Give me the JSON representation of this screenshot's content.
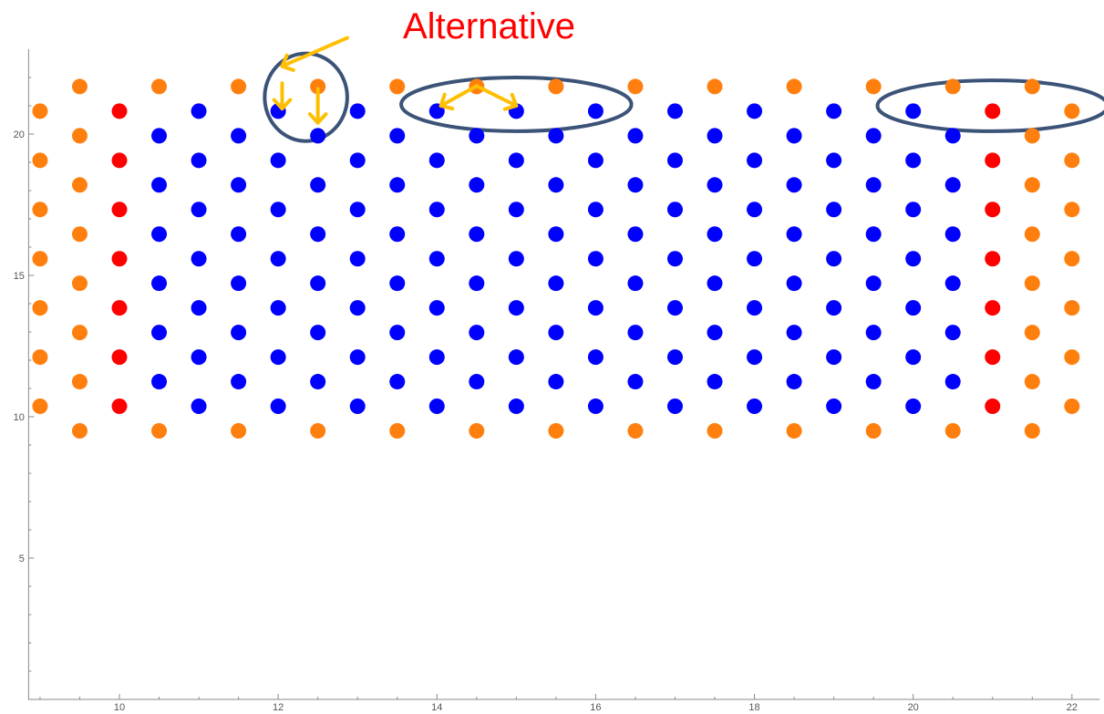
{
  "chart_data": {
    "type": "scatter",
    "annotation": "Alternative",
    "xlim": [
      8.85,
      22.35
    ],
    "ylim": [
      0,
      23
    ],
    "x_ticks": [
      10,
      12,
      14,
      16,
      18,
      20,
      22
    ],
    "y_ticks": [
      5,
      10,
      15,
      20
    ],
    "grid": false,
    "colors": {
      "orange": "#ff7f0e",
      "red": "#ff0000",
      "blue": "#0000ff",
      "ellipse": "#3c5378",
      "arrow": "#ffbf00"
    },
    "row_y": [
      9.5,
      10.37,
      11.24,
      12.11,
      12.98,
      13.85,
      14.72,
      15.59,
      16.46,
      17.33,
      18.2,
      19.07,
      19.94,
      20.81,
      21.68
    ],
    "series": [
      {
        "color": "orange",
        "points": [
          [
            9.5,
            9.5
          ],
          [
            10.5,
            9.5
          ],
          [
            11.5,
            9.5
          ],
          [
            12.5,
            9.5
          ],
          [
            13.5,
            9.5
          ],
          [
            14.5,
            9.5
          ],
          [
            15.5,
            9.5
          ],
          [
            16.5,
            9.5
          ],
          [
            17.5,
            9.5
          ],
          [
            18.5,
            9.5
          ],
          [
            19.5,
            9.5
          ],
          [
            20.5,
            9.5
          ],
          [
            21.5,
            9.5
          ],
          [
            9.0,
            10.37
          ],
          [
            9.5,
            11.24
          ],
          [
            9.0,
            12.11
          ],
          [
            9.5,
            12.98
          ],
          [
            9.0,
            13.85
          ],
          [
            9.5,
            14.72
          ],
          [
            9.0,
            15.59
          ],
          [
            9.5,
            16.46
          ],
          [
            9.0,
            17.33
          ],
          [
            9.5,
            18.2
          ],
          [
            9.0,
            19.07
          ],
          [
            9.5,
            19.94
          ],
          [
            9.0,
            20.81
          ],
          [
            22.0,
            10.37
          ],
          [
            21.5,
            11.24
          ],
          [
            22.0,
            12.11
          ],
          [
            21.5,
            12.98
          ],
          [
            22.0,
            13.85
          ],
          [
            21.5,
            14.72
          ],
          [
            22.0,
            15.59
          ],
          [
            21.5,
            16.46
          ],
          [
            22.0,
            17.33
          ],
          [
            21.5,
            18.2
          ],
          [
            22.0,
            19.07
          ],
          [
            21.5,
            19.94
          ],
          [
            22.0,
            20.81
          ],
          [
            9.5,
            21.68
          ],
          [
            10.5,
            21.68
          ],
          [
            11.5,
            21.68
          ],
          [
            12.5,
            21.68
          ],
          [
            13.5,
            21.68
          ],
          [
            14.5,
            21.68
          ],
          [
            15.5,
            21.68
          ],
          [
            16.5,
            21.68
          ],
          [
            17.5,
            21.68
          ],
          [
            18.5,
            21.68
          ],
          [
            19.5,
            21.68
          ],
          [
            20.5,
            21.68
          ],
          [
            21.5,
            21.68
          ]
        ]
      },
      {
        "color": "red",
        "points": [
          [
            10.0,
            10.37
          ],
          [
            10.0,
            12.11
          ],
          [
            10.0,
            13.85
          ],
          [
            10.0,
            15.59
          ],
          [
            10.0,
            17.33
          ],
          [
            10.0,
            19.07
          ],
          [
            10.0,
            20.81
          ],
          [
            21.0,
            10.37
          ],
          [
            21.0,
            12.11
          ],
          [
            21.0,
            13.85
          ],
          [
            21.0,
            15.59
          ],
          [
            21.0,
            17.33
          ],
          [
            21.0,
            19.07
          ],
          [
            21.0,
            20.81
          ]
        ]
      },
      {
        "color": "blue",
        "grid": {
          "even_rows": {
            "y": [
              10.37,
              12.11,
              13.85,
              15.59,
              17.33,
              19.07,
              20.81
            ],
            "x_from": 11,
            "x_to": 20,
            "step": 1
          },
          "odd_rows": {
            "y": [
              11.24,
              12.98,
              14.72,
              16.46,
              18.2,
              19.94
            ],
            "x_from": 10.5,
            "x_to": 20.5,
            "step": 1
          }
        }
      }
    ],
    "ellipses": [
      {
        "cx": 12.35,
        "cy": 21.3,
        "rx": 0.52,
        "ry": 1.55
      },
      {
        "cx": 15.0,
        "cy": 21.05,
        "rx": 1.45,
        "ry": 0.95
      },
      {
        "cx": 21.0,
        "cy": 21.0,
        "rx": 1.45,
        "ry": 0.9
      }
    ],
    "arrows": [
      {
        "from": [
          12.87,
          23.4
        ],
        "to": [
          12.05,
          22.4
        ]
      },
      {
        "from": [
          12.05,
          21.8
        ],
        "to": [
          12.05,
          20.9
        ]
      },
      {
        "from": [
          12.5,
          21.6
        ],
        "to": [
          12.5,
          20.4
        ]
      },
      {
        "from": [
          14.5,
          21.7
        ],
        "to": [
          14.05,
          21.0
        ]
      },
      {
        "from": [
          14.5,
          21.7
        ],
        "to": [
          15.0,
          21.0
        ]
      }
    ]
  }
}
